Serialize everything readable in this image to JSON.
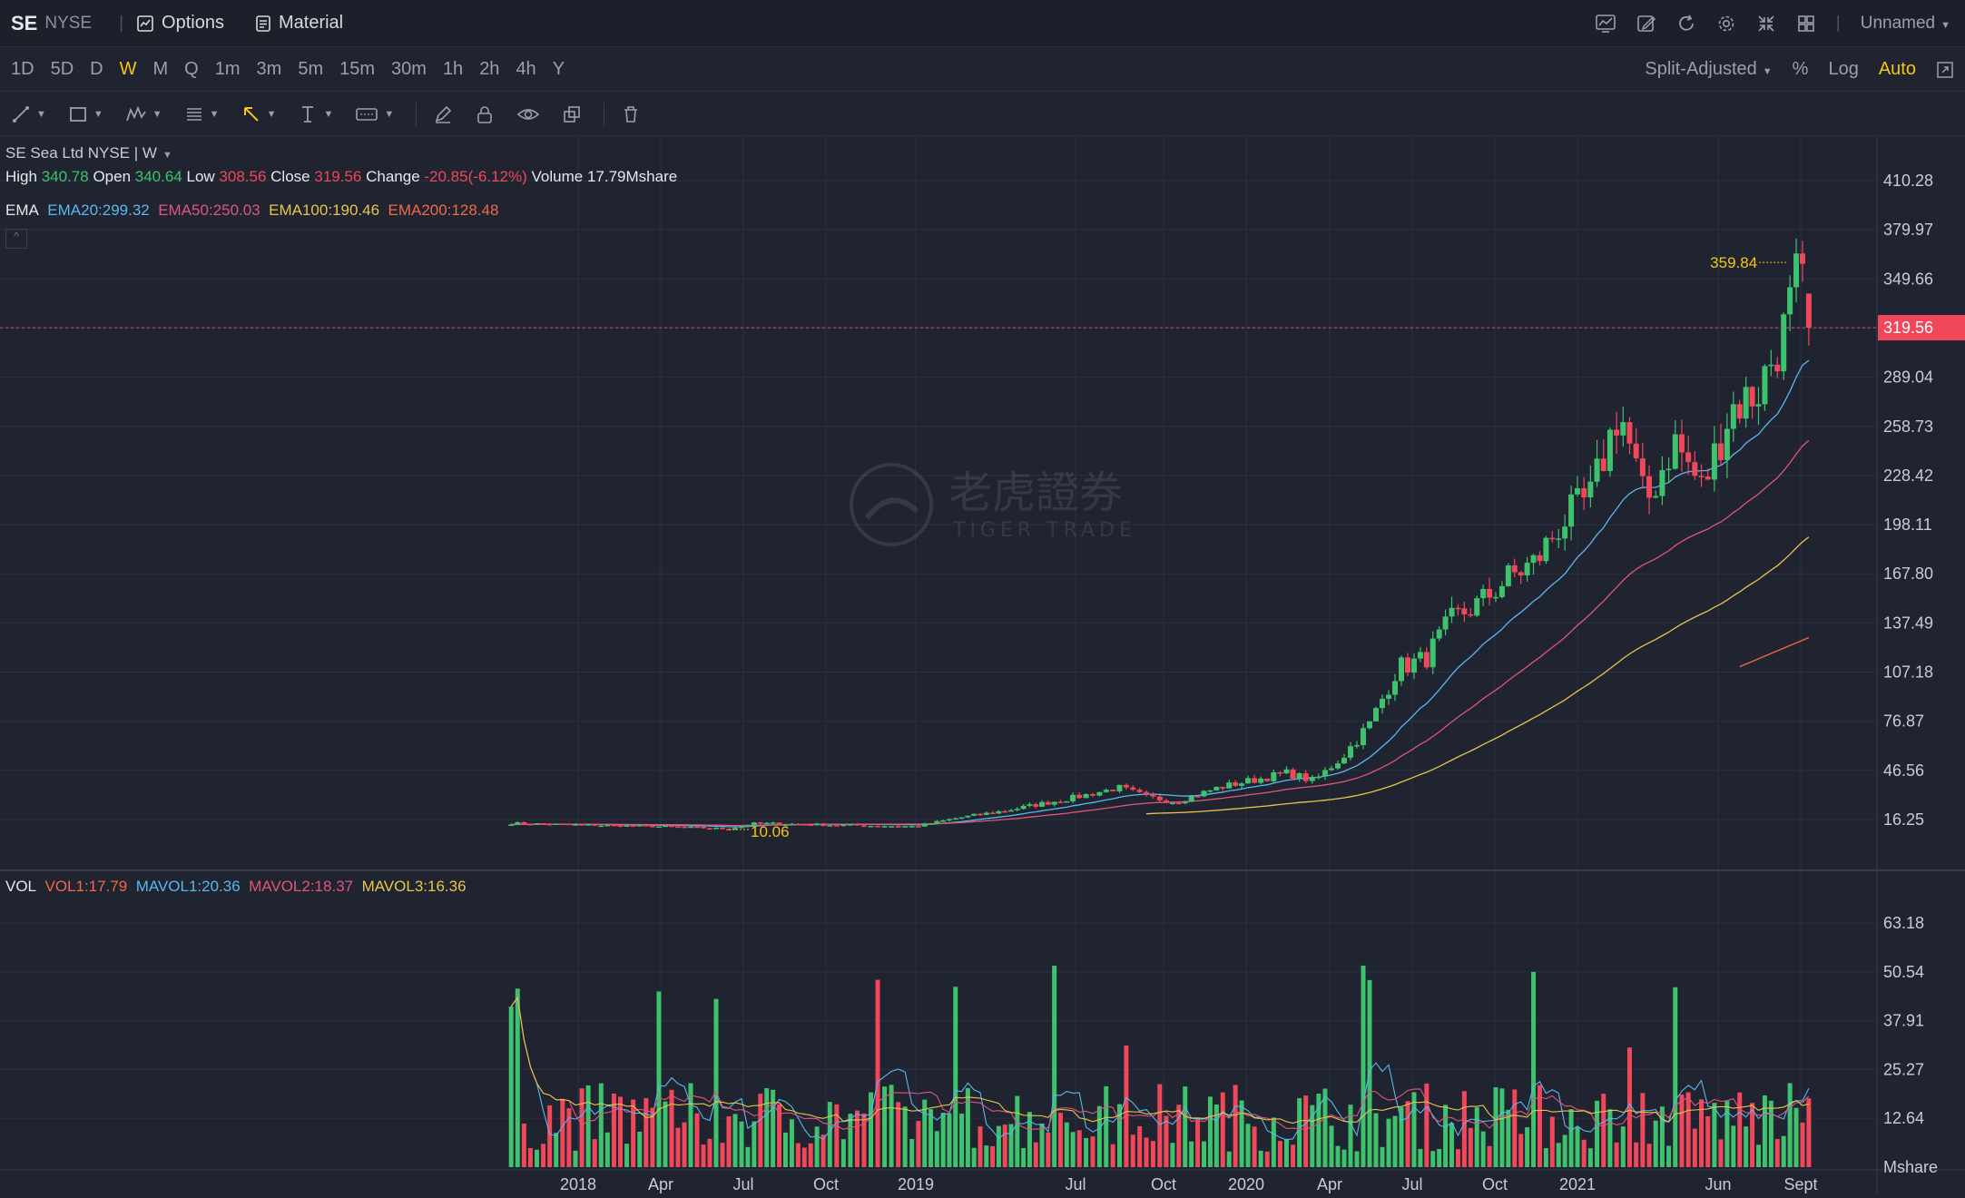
{
  "header": {
    "ticker": "SE",
    "exchange": "NYSE",
    "menu": [
      {
        "label": "Options",
        "icon": "options-chart-icon"
      },
      {
        "label": "Material",
        "icon": "document-icon"
      }
    ],
    "layout_name": "Unnamed"
  },
  "periods": [
    "1D",
    "5D",
    "D",
    "W",
    "M",
    "Q",
    "1m",
    "3m",
    "5m",
    "15m",
    "30m",
    "1h",
    "2h",
    "4h",
    "Y"
  ],
  "active_period": "W",
  "chart_options": {
    "adjust": "Split-Adjusted",
    "percent": "%",
    "log": "Log",
    "auto": "Auto"
  },
  "info": {
    "title": "SE  Sea Ltd NYSE | W",
    "high_label": "High",
    "high": "340.78",
    "open_label": "Open",
    "open": "340.64",
    "low_label": "Low",
    "low": "308.56",
    "close_label": "Close",
    "close": "319.56",
    "change_label": "Change",
    "change": "-20.85(-6.12%)",
    "volume_label": "Volume",
    "volume": "17.79Mshare"
  },
  "ema_legend": {
    "label": "EMA",
    "ema20": "EMA20:299.32",
    "ema50": "EMA50:250.03",
    "ema100": "EMA100:190.46",
    "ema200": "EMA200:128.48"
  },
  "vol_legend": {
    "label": "VOL",
    "vol1": "VOL1:17.79",
    "mavol1": "MAVOL1:20.36",
    "mavol2": "MAVOL2:18.37",
    "mavol3": "MAVOL3:16.36"
  },
  "watermark": {
    "cn": "老虎證券",
    "en": "TIGER TRADE"
  },
  "colors": {
    "up": "#3ec26d",
    "down": "#f0475b",
    "ema20": "#5bb6f0",
    "ema50": "#e1557a",
    "ema100": "#e8c54a",
    "ema200": "#f06a4a",
    "accent": "#f5c518",
    "bg": "#1f2430"
  },
  "chart_data": [
    {
      "type": "candlestick",
      "title": "SE Sea Ltd NYSE | W",
      "y_ticks": [
        410.28,
        379.97,
        349.66,
        319.56,
        289.04,
        258.73,
        228.42,
        198.11,
        167.8,
        137.49,
        107.18,
        76.87,
        46.56,
        16.25
      ],
      "y_tick_labels": [
        "410.28",
        "379.97",
        "349.66",
        "319.56",
        "289.04",
        "258.73",
        "228.42",
        "198.11",
        "167.80",
        "137.49",
        "107.18",
        "76.87",
        "46.56",
        "16.25"
      ],
      "x_ticks": [
        "2018",
        "Apr",
        "Jul",
        "Oct",
        "2019",
        "Jul",
        "Oct",
        "2020",
        "Apr",
        "Jul",
        "Oct",
        "2021",
        "Jun",
        "Sept"
      ],
      "ylim": [
        0,
        420
      ],
      "current_price": 319.56,
      "current_price_label": "319.56",
      "annotations": [
        {
          "label": "359.84",
          "value": 359.84
        },
        {
          "label": "10.06",
          "value": 10.06
        }
      ],
      "close_path": [
        {
          "date": "2017-10-20",
          "close": 14
        },
        {
          "date": "2018-01-01",
          "close": 13
        },
        {
          "date": "2018-04-01",
          "close": 12
        },
        {
          "date": "2018-06-15",
          "close": 10.5
        },
        {
          "date": "2018-07-15",
          "close": 14
        },
        {
          "date": "2018-10-01",
          "close": 13
        },
        {
          "date": "2019-01-01",
          "close": 12
        },
        {
          "date": "2019-02-15",
          "close": 17
        },
        {
          "date": "2019-04-15",
          "close": 22
        },
        {
          "date": "2019-07-01",
          "close": 30
        },
        {
          "date": "2019-08-15",
          "close": 36
        },
        {
          "date": "2019-09-15",
          "close": 30
        },
        {
          "date": "2019-10-15",
          "close": 27
        },
        {
          "date": "2019-12-01",
          "close": 36
        },
        {
          "date": "2020-02-15",
          "close": 45
        },
        {
          "date": "2020-03-15",
          "close": 40
        },
        {
          "date": "2020-04-15",
          "close": 55
        },
        {
          "date": "2020-05-15",
          "close": 75
        },
        {
          "date": "2020-06-15",
          "close": 110
        },
        {
          "date": "2020-07-15",
          "close": 115
        },
        {
          "date": "2020-08-15",
          "close": 140
        },
        {
          "date": "2020-09-15",
          "close": 150
        },
        {
          "date": "2020-10-15",
          "close": 165
        },
        {
          "date": "2020-11-15",
          "close": 175
        },
        {
          "date": "2020-12-15",
          "close": 200
        },
        {
          "date": "2021-01-15",
          "close": 215
        },
        {
          "date": "2021-02-15",
          "close": 270
        },
        {
          "date": "2021-03-01",
          "close": 240
        },
        {
          "date": "2021-03-15",
          "close": 210
        },
        {
          "date": "2021-04-15",
          "close": 250
        },
        {
          "date": "2021-05-15",
          "close": 220
        },
        {
          "date": "2021-06-15",
          "close": 270
        },
        {
          "date": "2021-07-15",
          "close": 280
        },
        {
          "date": "2021-08-15",
          "close": 320
        },
        {
          "date": "2021-08-30",
          "close": 355
        },
        {
          "date": "2021-09-10",
          "close": 319.56
        }
      ],
      "series": [
        {
          "name": "EMA20",
          "value": 299.32
        },
        {
          "name": "EMA50",
          "value": 250.03
        },
        {
          "name": "EMA100",
          "value": 190.46
        },
        {
          "name": "EMA200",
          "value": 128.48
        }
      ]
    },
    {
      "type": "bar",
      "title": "VOL",
      "unit": "Mshare",
      "y_ticks": [
        63.18,
        50.54,
        37.91,
        25.27,
        12.64
      ],
      "y_tick_labels": [
        "63.18",
        "50.54",
        "37.91",
        "25.27",
        "12.64"
      ],
      "ylim": [
        0,
        70
      ],
      "current": 17.79,
      "series": [
        {
          "name": "VOL1",
          "value": 17.79
        },
        {
          "name": "MAVOL1",
          "value": 20.36
        },
        {
          "name": "MAVOL2",
          "value": 18.37
        },
        {
          "name": "MAVOL3",
          "value": 16.36
        }
      ]
    }
  ]
}
